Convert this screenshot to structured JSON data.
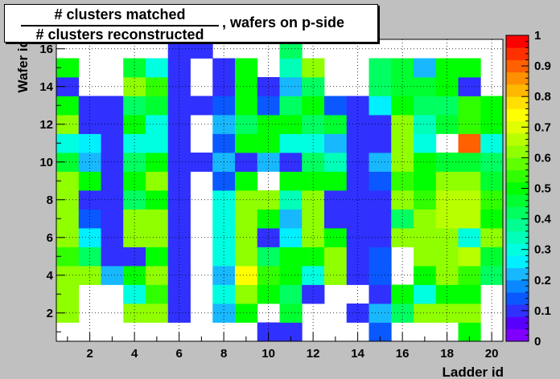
{
  "chart_data": {
    "type": "heatmap",
    "title": {
      "numerator": "# clusters matched",
      "denominator": "# clusters reconstructed",
      "rest": ", wafers on p-side"
    },
    "xlabel": "Ladder id",
    "ylabel": "Wafer id",
    "x_range": [
      0.5,
      20.5
    ],
    "y_range": [
      0.5,
      16.5
    ],
    "x_ticks": [
      2,
      4,
      6,
      8,
      10,
      12,
      14,
      16,
      18,
      20
    ],
    "y_ticks": [
      2,
      4,
      6,
      8,
      10,
      12,
      14,
      16
    ],
    "z_range": [
      0,
      1
    ],
    "z_ticks": [
      "0",
      "0.1",
      "0.2",
      "0.3",
      "0.4",
      "0.5",
      "0.6",
      "0.7",
      "0.8",
      "0.9",
      "1"
    ],
    "grid": true,
    "palette": [
      "#8000ff",
      "#5800ff",
      "#3030ff",
      "#0a58ff",
      "#0a88ff",
      "#18b8ff",
      "#00f0ff",
      "#00ffe0",
      "#00ffb8",
      "#00ff90",
      "#00ff60",
      "#00ff30",
      "#00ff00",
      "#30ff00",
      "#60ff00",
      "#90ff00",
      "#b8ff00",
      "#e0ff00",
      "#ffff00",
      "#ffe000",
      "#ffb800",
      "#ff9000",
      "#ff6000",
      "#ff3000",
      "#ff0000"
    ],
    "rows": [
      [
        null,
        null,
        null,
        null,
        null,
        null,
        null,
        null,
        null,
        0.1,
        0.1,
        null,
        null,
        null,
        0.15,
        null,
        null,
        null,
        0.5,
        null
      ],
      [
        0.6,
        null,
        null,
        0.6,
        0.6,
        0.1,
        null,
        0.2,
        0.5,
        null,
        0.45,
        null,
        null,
        0.1,
        0.2,
        0.4,
        0.6,
        0.6,
        0.6,
        null
      ],
      [
        0.6,
        null,
        null,
        0.3,
        0.55,
        0.1,
        null,
        0.3,
        0.6,
        0.5,
        0.4,
        0.1,
        null,
        null,
        0.1,
        0.5,
        0.3,
        0.5,
        0.5,
        null
      ],
      [
        0.6,
        0.6,
        0.2,
        0.5,
        0.6,
        0.1,
        null,
        0.2,
        0.75,
        0.55,
        0.5,
        0.3,
        0.6,
        0.1,
        0.15,
        null,
        0.5,
        0.6,
        0.55,
        0.4
      ],
      [
        0.55,
        0.4,
        0.1,
        0.1,
        0.5,
        0.1,
        null,
        0.3,
        0.6,
        0.4,
        0.5,
        0.5,
        0.6,
        0.1,
        0.15,
        null,
        0.6,
        0.6,
        0.65,
        0.45
      ],
      [
        0.6,
        0.25,
        0.1,
        0.6,
        0.6,
        0.1,
        null,
        0.3,
        0.6,
        0.1,
        0.25,
        0.6,
        0.5,
        0.1,
        0.1,
        0.6,
        0.6,
        0.6,
        0.3,
        0.6
      ],
      [
        0.6,
        0.15,
        0.1,
        0.6,
        0.6,
        0.1,
        null,
        0.3,
        0.6,
        0.5,
        0.2,
        0.6,
        0.1,
        0.1,
        0.1,
        0.4,
        0.6,
        0.65,
        0.65,
        0.5
      ],
      [
        0.6,
        0.1,
        0.1,
        0.4,
        0.5,
        0.1,
        null,
        0.3,
        0.6,
        0.6,
        0.35,
        0.6,
        0.1,
        0.1,
        0.1,
        0.6,
        0.55,
        0.65,
        0.65,
        0.55
      ],
      [
        0.6,
        0.5,
        0.1,
        0.5,
        0.6,
        0.1,
        null,
        0.15,
        0.5,
        null,
        0.5,
        0.5,
        0.5,
        0.1,
        0.15,
        0.55,
        0.5,
        0.6,
        0.6,
        0.45
      ],
      [
        0.45,
        0.2,
        0.1,
        0.4,
        0.5,
        0.1,
        0.1,
        0.2,
        0.1,
        0.2,
        0.1,
        0.4,
        0.35,
        0.1,
        0.2,
        0.6,
        0.5,
        0.45,
        0.45,
        0.4
      ],
      [
        0.3,
        0.25,
        0.1,
        0.3,
        0.3,
        0.1,
        null,
        0.15,
        0.5,
        0.5,
        0.3,
        0.3,
        0.2,
        0.1,
        0.1,
        0.6,
        0.3,
        null,
        0.9,
        0.3
      ],
      [
        0.6,
        0.1,
        0.1,
        0.5,
        0.3,
        0.1,
        null,
        0.2,
        0.4,
        0.5,
        0.5,
        0.4,
        0.45,
        0.1,
        0.1,
        0.6,
        0.35,
        0.45,
        0.55,
        0.5
      ],
      [
        0.5,
        0.1,
        0.1,
        0.4,
        0.45,
        0.1,
        0.1,
        0.15,
        0.5,
        0.15,
        0.4,
        0.5,
        0.15,
        0.1,
        0.25,
        0.5,
        0.4,
        0.4,
        0.55,
        0.5
      ],
      [
        0.1,
        null,
        null,
        0.6,
        0.55,
        0.1,
        null,
        0.1,
        0.5,
        0.1,
        0.2,
        0.4,
        null,
        null,
        0.4,
        0.45,
        0.45,
        0.5,
        0.1,
        null
      ],
      [
        0.5,
        null,
        null,
        0.45,
        0.3,
        0.1,
        null,
        0.1,
        0.5,
        null,
        0.35,
        0.6,
        null,
        null,
        0.4,
        0.45,
        0.2,
        0.5,
        0.5,
        null
      ],
      [
        null,
        null,
        null,
        null,
        null,
        0.1,
        0.1,
        null,
        null,
        null,
        0.4,
        null,
        null,
        null,
        null,
        null,
        null,
        null,
        null,
        null
      ]
    ]
  }
}
